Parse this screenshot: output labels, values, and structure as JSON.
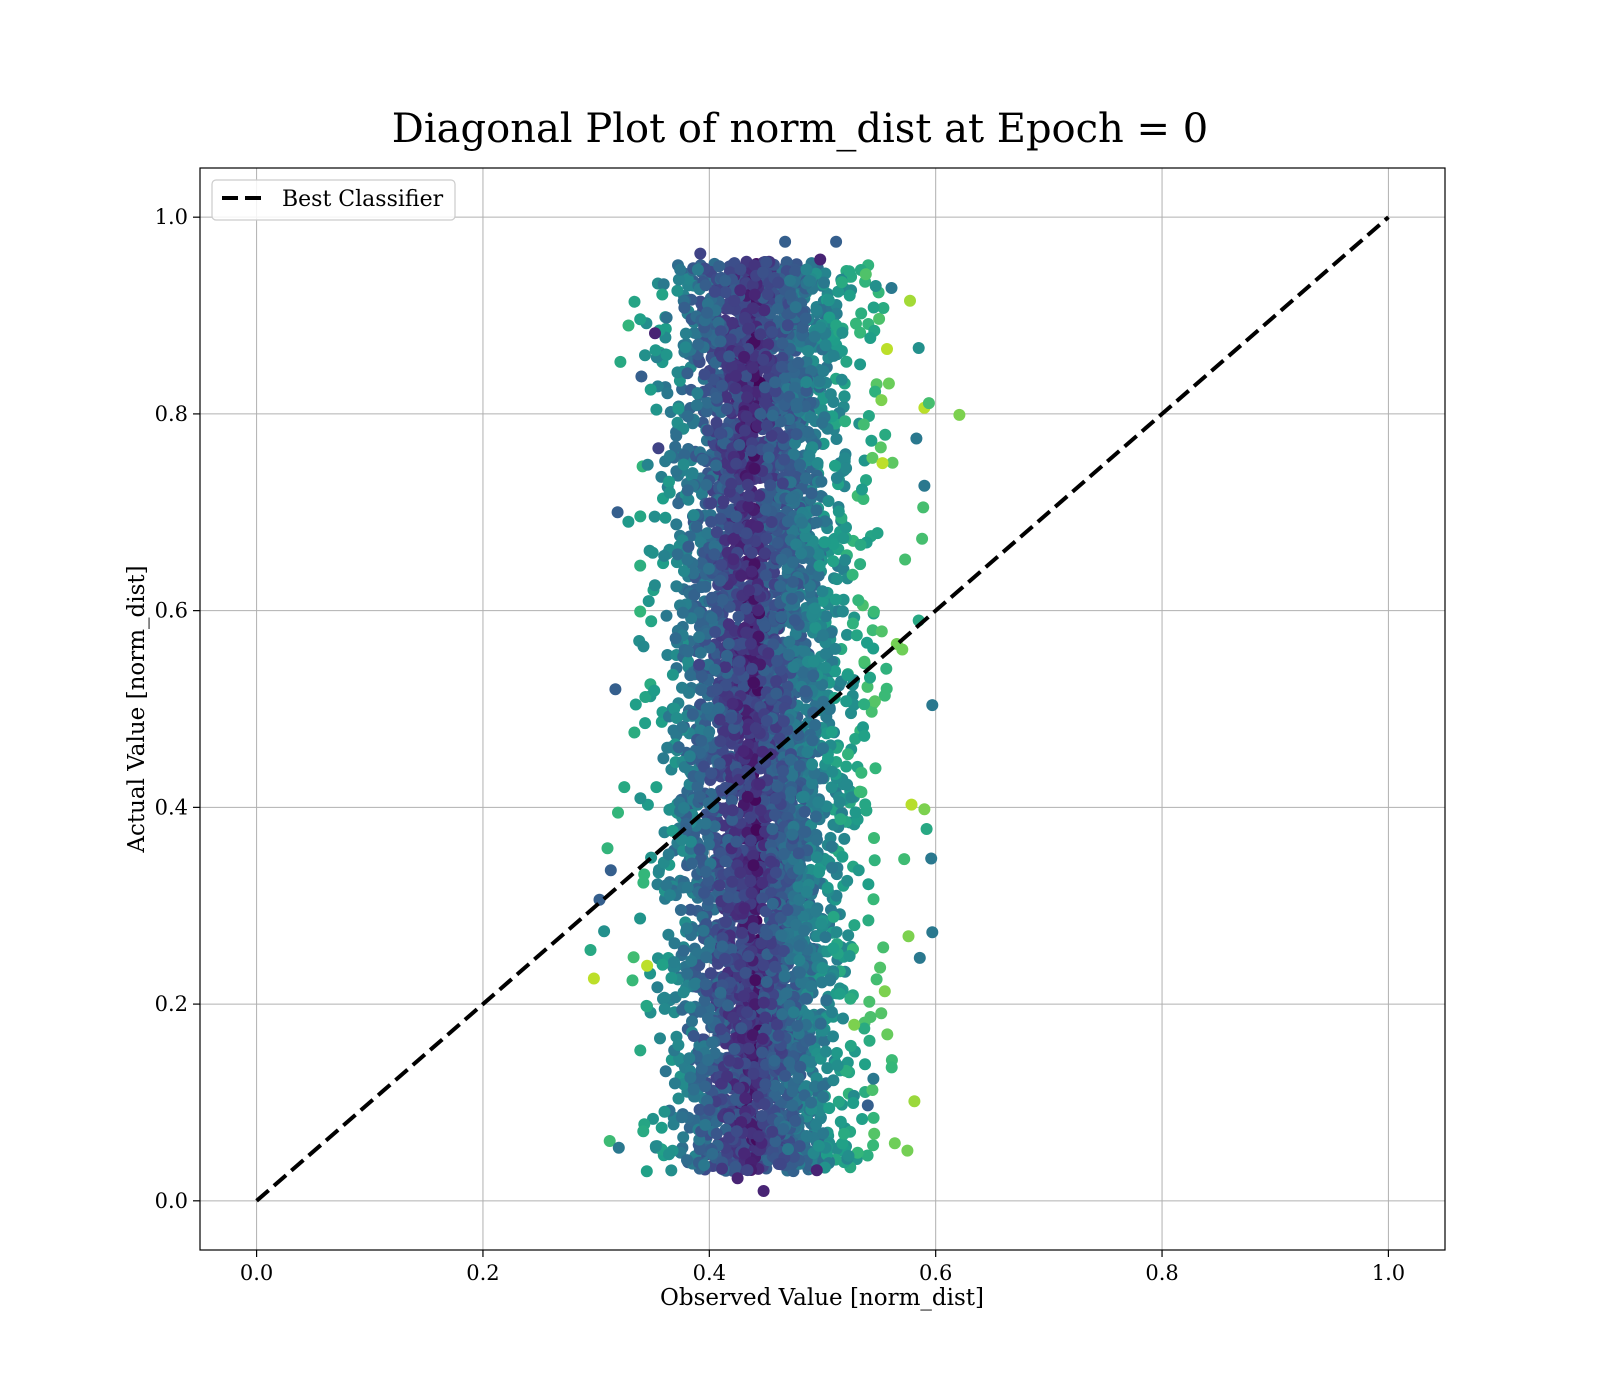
{
  "chart_data": {
    "type": "scatter",
    "title": "Diagonal Plot of norm_dist at Epoch = 0",
    "xlabel": "Observed Value [norm_dist]",
    "ylabel": "Actual Value [norm_dist]",
    "xlim": [
      -0.05,
      1.05
    ],
    "ylim": [
      -0.05,
      1.05
    ],
    "xticks": [
      "0.0",
      "0.2",
      "0.4",
      "0.6",
      "0.8",
      "1.0"
    ],
    "yticks": [
      "0.0",
      "0.2",
      "0.4",
      "0.6",
      "0.8",
      "1.0"
    ],
    "grid": true,
    "colormap": "viridis",
    "legend": {
      "position": "top-left",
      "entries": [
        "Best Classifier"
      ]
    },
    "reference_line": {
      "label": "Best Classifier",
      "x": [
        0.0,
        1.0
      ],
      "y": [
        0.0,
        1.0
      ],
      "style": "dashed",
      "color": "#000000"
    },
    "scatter": {
      "x_center": 0.445,
      "x_spread": 0.04,
      "x_range": [
        0.3,
        0.62
      ],
      "y_range": [
        0.01,
        0.975
      ],
      "points": [
        [
          0.352,
          0.882,
          0.1
        ],
        [
          0.34,
          0.838,
          0.3
        ],
        [
          0.392,
          0.963,
          0.2
        ],
        [
          0.467,
          0.975,
          0.3
        ],
        [
          0.512,
          0.975,
          0.3
        ],
        [
          0.498,
          0.957,
          0.1
        ],
        [
          0.621,
          0.799,
          0.8
        ],
        [
          0.594,
          0.811,
          0.7
        ],
        [
          0.585,
          0.867,
          0.5
        ],
        [
          0.583,
          0.775,
          0.4
        ],
        [
          0.355,
          0.765,
          0.2
        ],
        [
          0.319,
          0.7,
          0.3
        ],
        [
          0.59,
          0.727,
          0.4
        ],
        [
          0.589,
          0.705,
          0.7
        ],
        [
          0.588,
          0.673,
          0.7
        ],
        [
          0.573,
          0.652,
          0.7
        ],
        [
          0.585,
          0.59,
          0.6
        ],
        [
          0.597,
          0.504,
          0.4
        ],
        [
          0.317,
          0.52,
          0.3
        ],
        [
          0.59,
          0.398,
          0.8
        ],
        [
          0.596,
          0.348,
          0.4
        ],
        [
          0.592,
          0.378,
          0.6
        ],
        [
          0.298,
          0.226,
          0.9
        ],
        [
          0.295,
          0.255,
          0.6
        ],
        [
          0.597,
          0.273,
          0.4
        ],
        [
          0.576,
          0.269,
          0.8
        ],
        [
          0.586,
          0.247,
          0.4
        ],
        [
          0.345,
          0.239,
          0.9
        ],
        [
          0.32,
          0.054,
          0.4
        ],
        [
          0.448,
          0.01,
          0.1
        ],
        [
          0.425,
          0.023,
          0.1
        ],
        [
          0.495,
          0.031,
          0.1
        ],
        [
          0.54,
          0.097,
          0.3
        ],
        [
          0.545,
          0.124,
          0.4
        ],
        [
          0.528,
          0.179,
          0.8
        ],
        [
          0.555,
          0.213,
          0.8
        ],
        [
          0.537,
          0.548,
          0.7
        ],
        [
          0.552,
          0.814,
          0.8
        ],
        [
          0.553,
          0.75,
          0.9
        ],
        [
          0.557,
          0.866,
          0.9
        ],
        [
          0.547,
          0.93,
          0.5
        ],
        [
          0.561,
          0.928,
          0.4
        ],
        [
          0.363,
          0.821,
          0.4
        ],
        [
          0.378,
          0.908,
          0.3
        ],
        [
          0.391,
          0.545,
          0.2
        ],
        [
          0.313,
          0.336,
          0.3
        ],
        [
          0.303,
          0.306,
          0.3
        ],
        [
          0.307,
          0.274,
          0.5
        ]
      ]
    }
  }
}
